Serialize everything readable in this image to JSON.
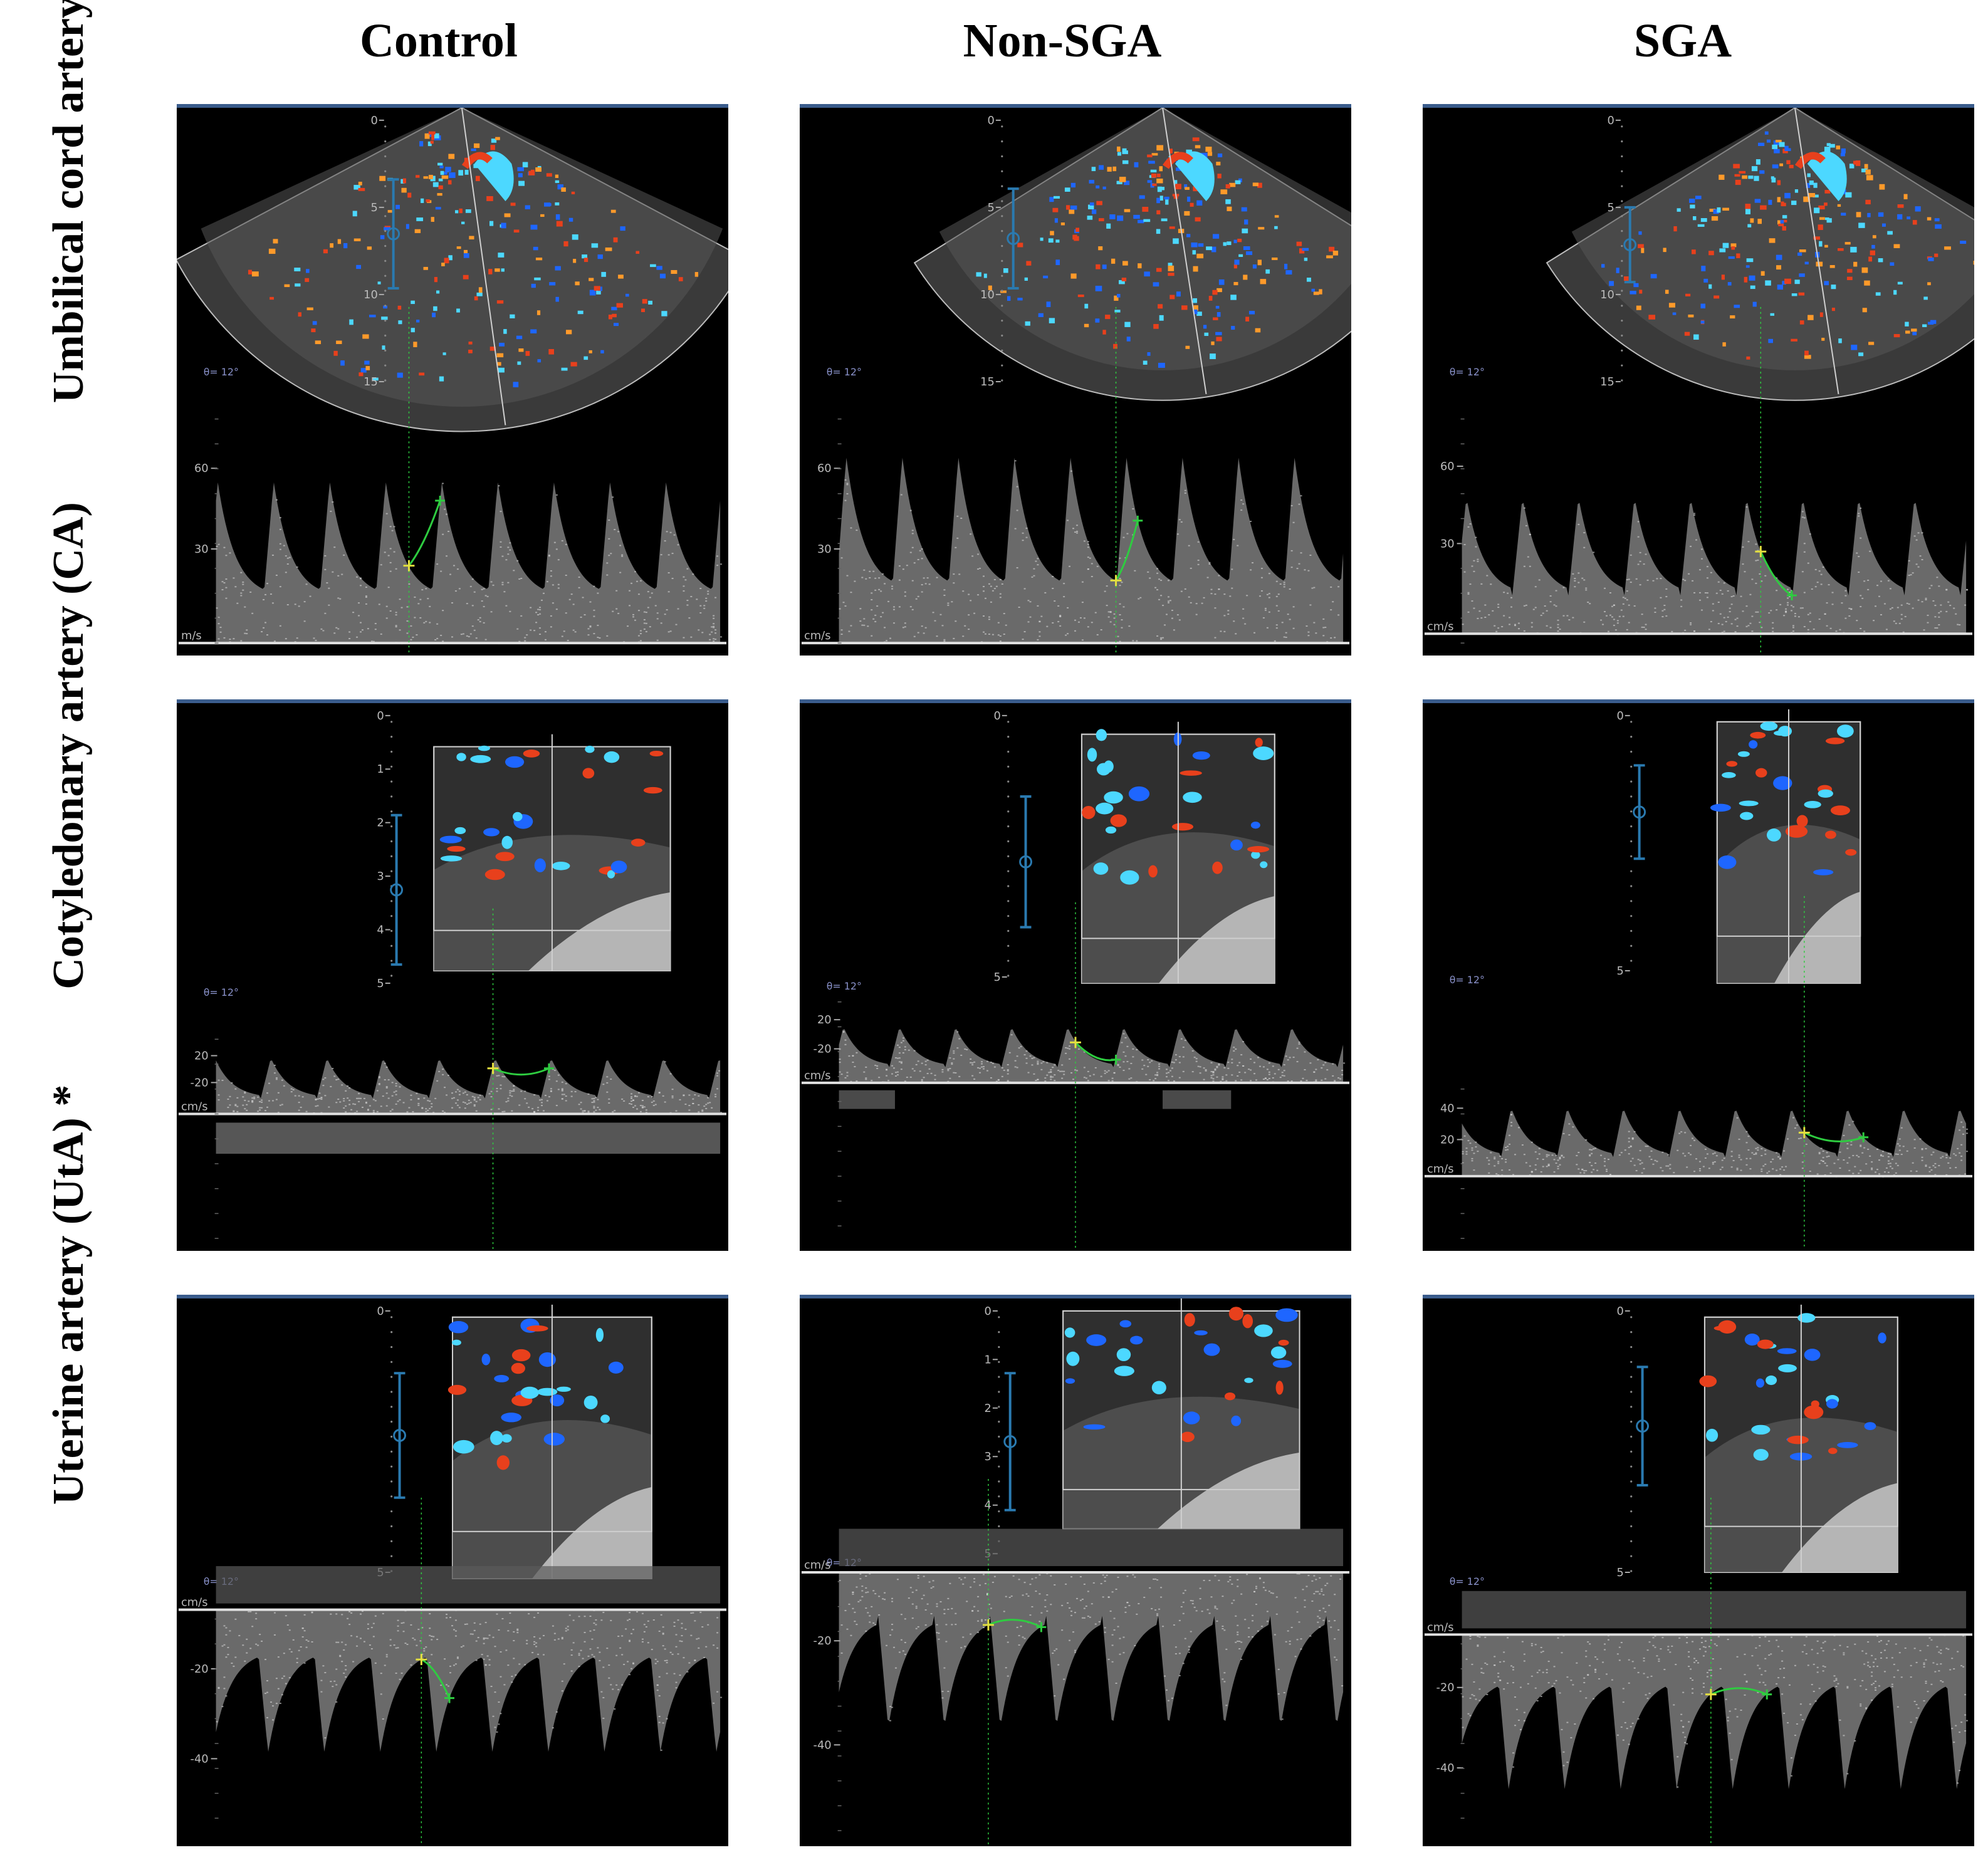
{
  "columns": [
    "Control",
    "Non-SGA",
    "SGA"
  ],
  "rows": [
    "Umbilical cord artery (UA)",
    "Cotyledonary artery (CA)",
    "Uterine artery (UtA) *"
  ],
  "colors": {
    "flow_red": "#e8401c",
    "flow_blue": "#1e66ff",
    "flow_cyan": "#4cd8ff",
    "caliper_yellow": "#e4e040",
    "trace_green": "#2ecc40",
    "gate_blue": "#2a7ab0"
  },
  "panels": [
    {
      "id": "ua-control",
      "scan": "sector",
      "angle_label": "θ= 12°",
      "depth_ticks": [
        "0",
        "5",
        "10",
        "15"
      ],
      "velocity_unit": "m/s",
      "velocity_ticks": [
        "60",
        "30"
      ],
      "spectrum": "positive"
    },
    {
      "id": "ua-nonsga",
      "scan": "sector",
      "angle_label": "θ= 12°",
      "depth_ticks": [
        "0",
        "5",
        "10",
        "15"
      ],
      "velocity_unit": "cm/s",
      "velocity_ticks": [
        "60",
        "30"
      ],
      "spectrum": "positive"
    },
    {
      "id": "ua-sga",
      "scan": "sector",
      "angle_label": "θ= 12°",
      "depth_ticks": [
        "0",
        "5",
        "10",
        "15"
      ],
      "velocity_unit": "cm/s",
      "velocity_ticks": [
        "60",
        "30"
      ],
      "spectrum": "positive"
    },
    {
      "id": "ca-control",
      "scan": "linear",
      "angle_label": "θ= 12°",
      "depth_ticks": [
        "0",
        "1",
        "2",
        "3",
        "4",
        "5"
      ],
      "velocity_unit": "cm/s",
      "velocity_ticks": [
        "20",
        "-20"
      ],
      "spectrum": "positive"
    },
    {
      "id": "ca-nonsga",
      "scan": "linear",
      "angle_label": "θ= 12°",
      "depth_ticks": [
        "0",
        "5"
      ],
      "velocity_unit": "cm/s",
      "velocity_ticks": [
        "20",
        "-20"
      ],
      "spectrum": "positive"
    },
    {
      "id": "ca-sga",
      "scan": "linear",
      "angle_label": "θ= 12°",
      "depth_ticks": [
        "0",
        "5"
      ],
      "velocity_unit": "cm/s",
      "velocity_ticks": [
        "40",
        "20"
      ],
      "spectrum": "positive"
    },
    {
      "id": "uta-control",
      "scan": "linear",
      "angle_label": "θ= 12°",
      "depth_ticks": [
        "0",
        "5"
      ],
      "velocity_unit": "cm/s",
      "velocity_ticks": [
        "-20",
        "-40"
      ],
      "spectrum": "negative"
    },
    {
      "id": "uta-nonsga",
      "scan": "linear",
      "angle_label": "θ= 12°",
      "depth_ticks": [
        "0",
        "1",
        "2",
        "3",
        "4",
        "5"
      ],
      "velocity_unit": "cm/s",
      "velocity_ticks": [
        "-20",
        "-40"
      ],
      "spectrum": "negative"
    },
    {
      "id": "uta-sga",
      "scan": "linear",
      "angle_label": "θ= 12°",
      "depth_ticks": [
        "0",
        "5"
      ],
      "velocity_unit": "cm/s",
      "velocity_ticks": [
        "-20",
        "-40"
      ],
      "spectrum": "negative"
    }
  ]
}
